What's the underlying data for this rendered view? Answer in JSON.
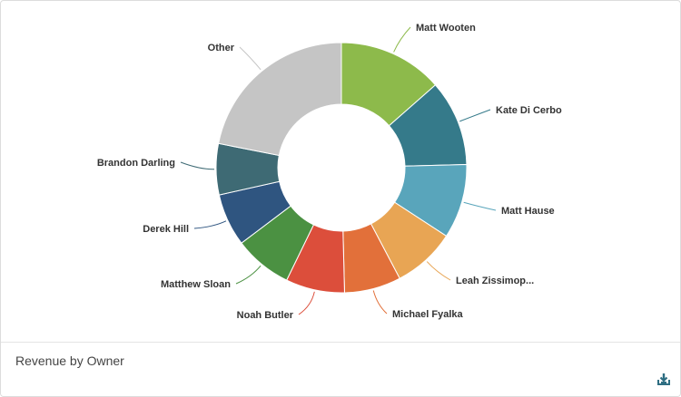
{
  "chart_data": {
    "type": "pie",
    "style": "donut",
    "title": "Revenue by Owner",
    "categories": [
      "Matt Wooten",
      "Kate Di Cerbo",
      "Matt Hause",
      "Leah Zissimop...",
      "Michael Fyalka",
      "Noah Butler",
      "Matthew Sloan",
      "Derek Hill",
      "Brandon Darling",
      "Other"
    ],
    "values": [
      13.5,
      11.1,
      9.6,
      8.1,
      7.3,
      7.6,
      7.5,
      6.8,
      6.6,
      21.9
    ],
    "colors": [
      "#8dba4b",
      "#357a8a",
      "#59a5bb",
      "#e8a554",
      "#e2703a",
      "#dc4e3b",
      "#4b9142",
      "#2f5580",
      "#3e6a74",
      "#c5c5c5"
    ],
    "legend": "none"
  },
  "footer": {
    "title": "Revenue by Owner",
    "download_icon": "download-icon"
  }
}
